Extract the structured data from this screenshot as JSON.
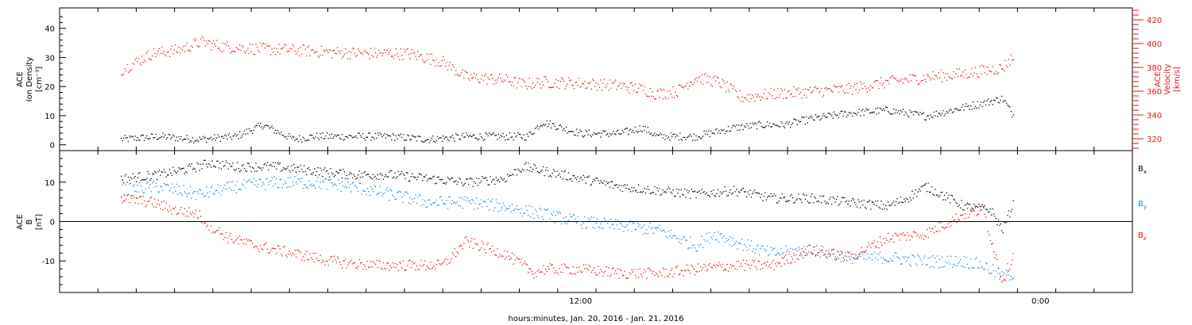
{
  "chart_data": [
    {
      "type": "scatter",
      "panel": "top",
      "title": "",
      "xlabel": "hours:minutes, Jan. 20, 2016 - Jan. 21, 2016",
      "x_ticks": [
        "12:00",
        "0:00"
      ],
      "ylabel_left": [
        "ACE",
        "Ion Density",
        "[cm⁻³]"
      ],
      "ylim_left": [
        -2,
        47
      ],
      "yticks_left": [
        0,
        10,
        20,
        30,
        40
      ],
      "ylabel_right": [
        "ACE",
        "Velocity",
        "[km/s]"
      ],
      "ylim_right": [
        310,
        430
      ],
      "yticks_right": [
        320,
        340,
        360,
        380,
        400,
        420
      ],
      "colors": {
        "density": "#000000",
        "velocity": "#ee1111"
      },
      "series": [
        {
          "name": "",
          "axis": "left",
          "color": "#000000",
          "x": [
            0.0,
            1.0,
            2.0,
            3.0,
            3.7,
            4.5,
            5.0,
            6.0,
            7.0,
            8.0,
            9.0,
            10.0,
            10.6,
            11.0,
            12.0,
            13.0,
            13.6,
            14.0,
            14.5,
            15.0,
            16.0,
            16.7,
            17.3,
            18.0,
            19.0,
            20.0,
            21.0,
            22.0,
            23.0,
            23.3
          ],
          "y": [
            2,
            3,
            2,
            3,
            7,
            2,
            3,
            3,
            3,
            2,
            3,
            3,
            3,
            8,
            4,
            4,
            6,
            3,
            3,
            3,
            6,
            7,
            7,
            9,
            11,
            12,
            10,
            13,
            16,
            10
          ]
        },
        {
          "name": "",
          "axis": "right",
          "color": "#ee1111",
          "x": [
            0.0,
            0.8,
            1.5,
            2.1,
            2.6,
            3.5,
            4.5,
            5.5,
            6.5,
            7.5,
            8.4,
            9.0,
            10.0,
            10.5,
            11.0,
            12.0,
            13.0,
            13.6,
            14.0,
            14.5,
            15.0,
            15.6,
            16.2,
            17.0,
            18.0,
            19.0,
            20.0,
            21.0,
            22.0,
            23.0,
            23.3
          ],
          "y": [
            378,
            392,
            395,
            402,
            398,
            396,
            395,
            393,
            392,
            392,
            385,
            372,
            370,
            366,
            368,
            367,
            365,
            362,
            358,
            360,
            372,
            368,
            355,
            358,
            360,
            362,
            368,
            372,
            375,
            380,
            390
          ]
        }
      ]
    },
    {
      "type": "scatter",
      "panel": "bottom",
      "title": "",
      "xlabel": "hours:minutes, Jan. 20, 2016 - Jan. 21, 2016",
      "ylabel": [
        "ACE",
        "B",
        "[nT]"
      ],
      "ylim": [
        -18,
        18
      ],
      "yticks": [
        -10,
        0,
        10
      ],
      "zero_line": 0,
      "series": [
        {
          "name": "B",
          "sub": "x",
          "color": "#000000",
          "x": [
            0.0,
            1.0,
            1.5,
            2.0,
            2.3,
            3.0,
            4.0,
            5.0,
            6.0,
            7.0,
            8.0,
            9.0,
            10.0,
            10.5,
            11.0,
            12.0,
            13.0,
            14.0,
            15.0,
            16.0,
            17.0,
            18.0,
            19.0,
            20.0,
            20.5,
            21.0,
            22.0,
            22.7,
            23.0,
            23.3
          ],
          "y": [
            11,
            12,
            13,
            14,
            15,
            14,
            14,
            13,
            12,
            12,
            11,
            10,
            11,
            14,
            13,
            11,
            9,
            8,
            7,
            8,
            6,
            6,
            5,
            4,
            6,
            9,
            4,
            3,
            -2,
            5
          ]
        },
        {
          "name": "B",
          "sub": "y",
          "color": "#1188dd",
          "x": [
            0.0,
            1.0,
            2.0,
            3.0,
            4.0,
            5.0,
            6.0,
            7.0,
            8.0,
            9.0,
            10.0,
            11.0,
            11.5,
            12.0,
            13.0,
            14.0,
            15.0,
            15.5,
            16.0,
            17.0,
            18.0,
            19.0,
            20.0,
            21.0,
            22.0,
            22.5,
            23.0,
            23.3
          ],
          "y": [
            8,
            9,
            7,
            9,
            10,
            10,
            9,
            7,
            5,
            5,
            4,
            2,
            1,
            0,
            -1,
            -2,
            -6,
            -3,
            -5,
            -8,
            -7,
            -9,
            -9,
            -10,
            -10,
            -11,
            -14,
            -13
          ]
        },
        {
          "name": "B",
          "sub": "z",
          "color": "#ee1111",
          "x": [
            0.0,
            0.8,
            1.4,
            2.0,
            2.3,
            2.8,
            3.5,
            4.5,
            5.5,
            6.5,
            7.5,
            8.4,
            9.0,
            10.0,
            10.8,
            11.0,
            12.0,
            13.0,
            14.0,
            15.0,
            16.0,
            17.0,
            18.0,
            19.0,
            20.0,
            21.0,
            22.0,
            22.5,
            23.0,
            23.3
          ],
          "y": [
            6,
            5,
            3,
            2,
            -1,
            -4,
            -6,
            -8,
            -10,
            -11,
            -11,
            -11,
            -5,
            -8,
            -13,
            -12,
            -12,
            -13,
            -13,
            -12,
            -11,
            -11,
            -7,
            -9,
            -4,
            -3,
            2,
            3,
            -15,
            -8
          ]
        }
      ]
    }
  ]
}
